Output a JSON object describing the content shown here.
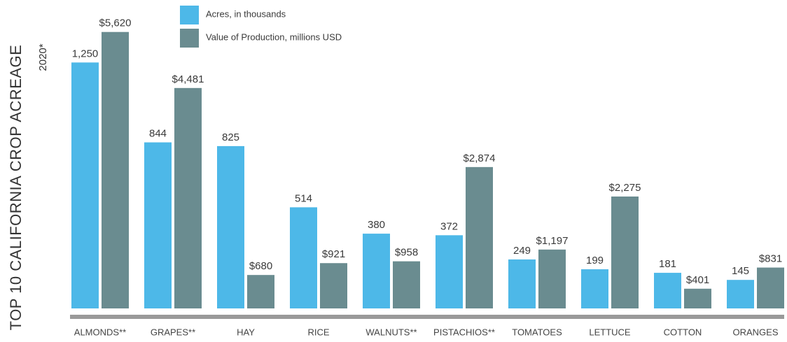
{
  "chart_data": {
    "type": "bar",
    "title": "TOP 10 CALIFORNIA CROP ACREAGE",
    "subtitle": "2020*",
    "categories": [
      "ALMONDS**",
      "GRAPES**",
      "HAY",
      "RICE",
      "WALNUTS**",
      "PISTACHIOS**",
      "TOMATOES",
      "LETTUCE",
      "COTTON",
      "ORANGES"
    ],
    "series": [
      {
        "name": "Acres, in thousands",
        "color": "#4db8e8",
        "values": [
          1250,
          844,
          825,
          514,
          380,
          372,
          249,
          199,
          181,
          145
        ],
        "value_labels": [
          "1,250",
          "844",
          "825",
          "514",
          "380",
          "372",
          "249",
          "199",
          "181",
          "145"
        ]
      },
      {
        "name": "Value of Production, millions USD",
        "color": "#6a8c90",
        "axis": "y2",
        "values": [
          5620,
          4481,
          680,
          921,
          958,
          2874,
          1197,
          2275,
          401,
          831
        ],
        "value_labels": [
          "$5,620",
          "$4,481",
          "$680",
          "$921",
          "$958",
          "$2,874",
          "$1,197",
          "$2,275",
          "$401",
          "$831"
        ]
      }
    ],
    "ylim": [
      0,
      1500
    ],
    "y2lim": [
      0,
      6000
    ]
  }
}
